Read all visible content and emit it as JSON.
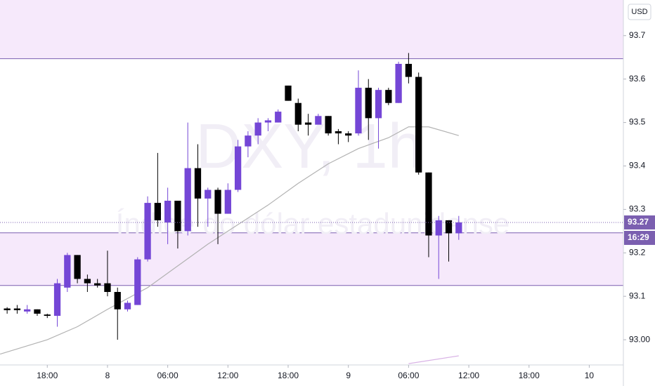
{
  "chart_data": {
    "type": "candlestick",
    "watermark": "DXY, 1h",
    "watermark_subtitle": "Índice do dólar estadunidense",
    "currency_button": "USD",
    "up_color": "#7446d6",
    "down_color": "#000000",
    "x": [
      14,
      15,
      16,
      17,
      18,
      19,
      20,
      21,
      22,
      23,
      24,
      25,
      26,
      27,
      28,
      29,
      30,
      31,
      32,
      33,
      34,
      35,
      36,
      37,
      38,
      39,
      40,
      41,
      42,
      43,
      44,
      45,
      46,
      47,
      48,
      49,
      50,
      51,
      52,
      53,
      54,
      55,
      56,
      57,
      58,
      59
    ],
    "open": [
      93.072,
      93.072,
      93.065,
      93.07,
      93.058,
      93.055,
      93.12,
      93.195,
      93.14,
      93.13,
      93.13,
      93.11,
      93.07,
      93.08,
      93.185,
      93.315,
      93.27,
      93.32,
      93.25,
      93.395,
      93.325,
      93.345,
      93.29,
      93.345,
      93.445,
      93.47,
      93.5,
      93.5,
      93.585,
      93.545,
      93.5,
      93.495,
      93.515,
      93.48,
      93.475,
      93.475,
      93.58,
      93.51,
      93.575,
      93.545,
      93.635,
      93.605,
      93.385,
      93.24,
      93.275,
      93.245
    ],
    "high": [
      93.075,
      93.08,
      93.08,
      93.07,
      93.06,
      93.14,
      93.2,
      93.195,
      93.15,
      93.14,
      93.205,
      93.12,
      93.09,
      93.19,
      93.33,
      93.43,
      93.35,
      93.32,
      93.5,
      93.45,
      93.35,
      93.35,
      93.36,
      93.46,
      93.48,
      93.51,
      93.51,
      93.53,
      93.585,
      93.555,
      93.52,
      93.52,
      93.515,
      93.485,
      93.48,
      93.62,
      93.6,
      93.58,
      93.58,
      93.64,
      93.66,
      93.615,
      93.385,
      93.285,
      93.275,
      93.285
    ],
    "low": [
      93.06,
      93.06,
      93.06,
      93.055,
      93.05,
      93.03,
      93.11,
      93.13,
      93.11,
      93.12,
      93.1,
      93.0,
      93.065,
      93.08,
      93.18,
      93.26,
      93.22,
      93.21,
      93.24,
      93.26,
      93.26,
      93.22,
      93.29,
      93.34,
      93.42,
      93.45,
      93.48,
      93.5,
      93.55,
      93.48,
      93.47,
      93.5,
      93.47,
      93.45,
      93.455,
      93.47,
      93.46,
      93.44,
      93.54,
      93.545,
      93.59,
      93.38,
      93.19,
      93.14,
      93.18,
      93.23
    ],
    "close": [
      93.068,
      93.068,
      93.07,
      93.06,
      93.055,
      93.13,
      93.195,
      93.14,
      93.13,
      93.125,
      93.11,
      93.07,
      93.085,
      93.185,
      93.315,
      93.275,
      93.32,
      93.25,
      93.395,
      93.325,
      93.345,
      93.29,
      93.345,
      93.445,
      93.47,
      93.5,
      93.505,
      93.525,
      93.55,
      93.495,
      93.495,
      93.515,
      93.475,
      93.475,
      93.47,
      93.58,
      93.51,
      93.575,
      93.545,
      93.635,
      93.605,
      93.385,
      93.24,
      93.275,
      93.245,
      93.27
    ],
    "moving_averages": [
      {
        "color": "#b2b2b2",
        "x": [
          13.3,
          18,
          21,
          24,
          28,
          31,
          34,
          37,
          40,
          43,
          46,
          49,
          52,
          54,
          56,
          59
        ],
        "values": [
          92.967,
          93.0,
          93.03,
          93.07,
          93.12,
          93.17,
          93.22,
          93.265,
          93.31,
          93.36,
          93.405,
          93.44,
          93.465,
          93.49,
          93.49,
          93.47
        ]
      },
      {
        "color": "#d9b3e6",
        "x": [
          54,
          59
        ],
        "values": [
          92.945,
          92.963
        ]
      }
    ],
    "zones": [
      {
        "from": 93.647,
        "to": 93.782
      },
      {
        "from": 93.125,
        "to": 93.246
      }
    ],
    "zone_color": "#f6e9fb",
    "zone_line_color": "#7b5fb0",
    "current_price": 93.27,
    "countdown": "16:29",
    "xlim": [
      13.29,
      75.4
    ],
    "ylim": [
      92.942,
      93.782
    ],
    "xticks": [
      {
        "value": 18,
        "label": "18:00"
      },
      {
        "value": 24,
        "label": "8"
      },
      {
        "value": 30,
        "label": "06:00"
      },
      {
        "value": 36,
        "label": "12:00"
      },
      {
        "value": 42,
        "label": "18:00"
      },
      {
        "value": 48,
        "label": "9"
      },
      {
        "value": 54,
        "label": "06:00"
      },
      {
        "value": 60,
        "label": "12:00"
      },
      {
        "value": 66,
        "label": "18:00"
      },
      {
        "value": 72,
        "label": "10"
      }
    ],
    "yticks": [
      {
        "value": 93.0,
        "label": "93.00"
      },
      93.1,
      93.2,
      93.3,
      93.4,
      93.5,
      93.6,
      93.7
    ]
  }
}
